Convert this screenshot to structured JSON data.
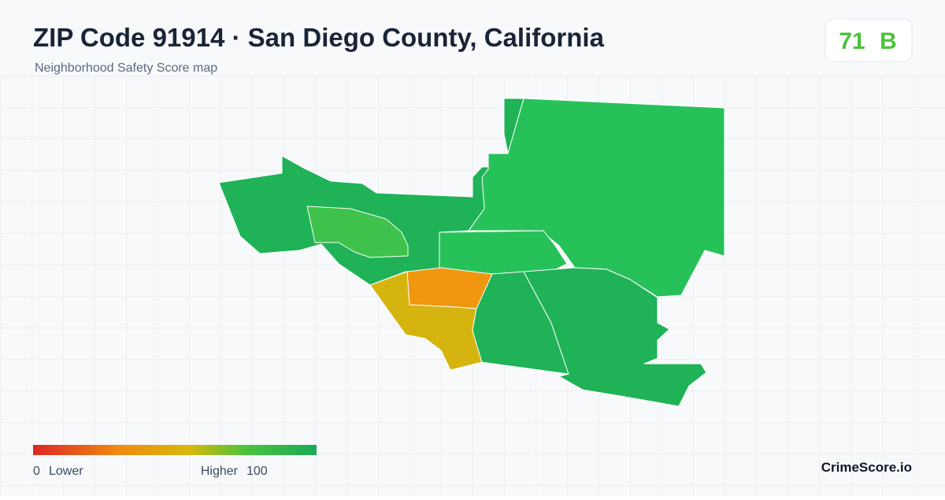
{
  "header": {
    "title": "ZIP Code 91914 · San Diego County, California",
    "subtitle": "Neighborhood Safety Score map"
  },
  "score": {
    "value": "71",
    "grade": "B"
  },
  "legend": {
    "min": "0",
    "min_label": "Lower",
    "max_label": "Higher",
    "max": "100"
  },
  "brand": "CrimeScore.io"
}
